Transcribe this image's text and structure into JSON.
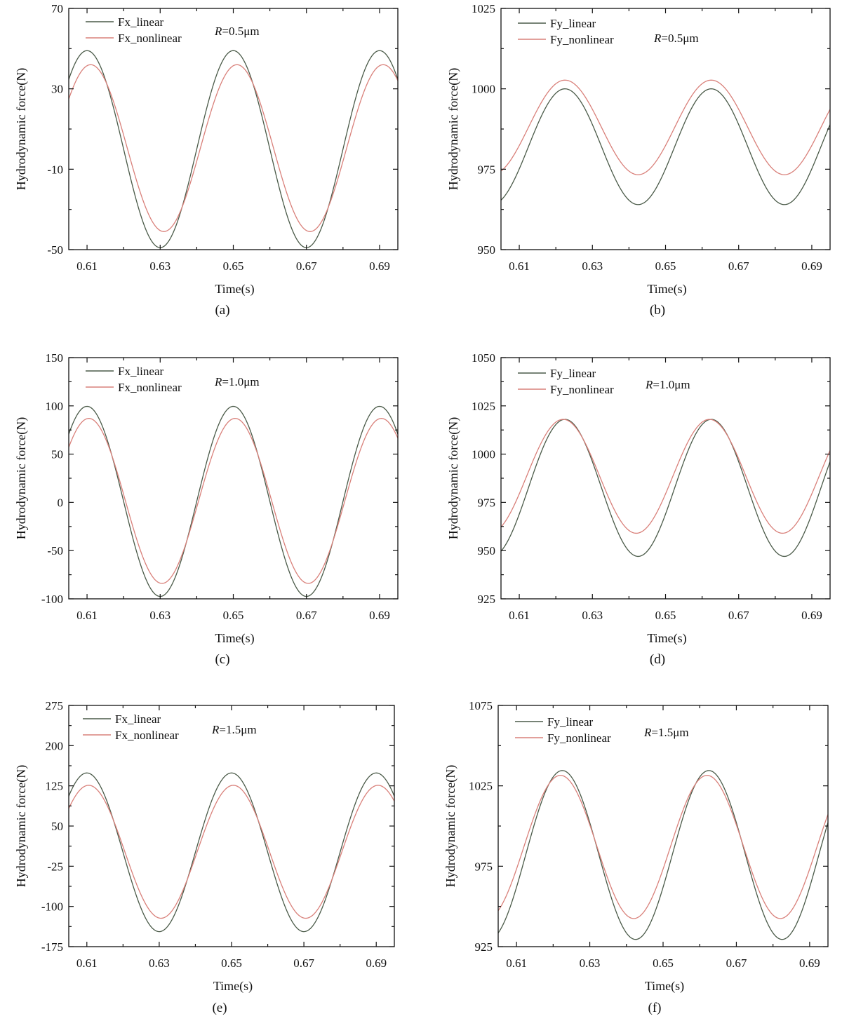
{
  "colors": {
    "linear": "#4a5a48",
    "nonlinear": "#d9807a",
    "axis": "#111111"
  },
  "chart_data": [
    {
      "panel": "(a)",
      "type": "line",
      "xlabel": "Time(s)",
      "ylabel": "Hydrodynamic force(N)",
      "annotation_var": "R",
      "annotation_text": "=0.5μm",
      "xlim": [
        0.605,
        0.695
      ],
      "ylim": [
        -50,
        70
      ],
      "xticks": [
        0.61,
        0.63,
        0.65,
        0.67,
        0.69
      ],
      "xtick_labels": [
        "0.61",
        "0.63",
        "0.65",
        "0.67",
        "0.69"
      ],
      "yticks": [
        -50,
        -10,
        30,
        70
      ],
      "ytick_labels": [
        "-50",
        "-10",
        "30",
        "70"
      ],
      "series": [
        {
          "name": "Fx_linear",
          "mean": 0,
          "amplitude": 49,
          "phase_peak_time": 0.61,
          "period": 0.04
        },
        {
          "name": "Fx_nonlinear",
          "mean": 0.5,
          "amplitude": 41.5,
          "phase_peak_time": 0.611,
          "period": 0.04
        }
      ]
    },
    {
      "panel": "(b)",
      "type": "line",
      "xlabel": "Time(s)",
      "ylabel": "Hydrodynamic force(N)",
      "annotation_var": "R",
      "annotation_text": "=0.5μm",
      "xlim": [
        0.605,
        0.695
      ],
      "ylim": [
        950,
        1025
      ],
      "xticks": [
        0.61,
        0.63,
        0.65,
        0.67,
        0.69
      ],
      "xtick_labels": [
        "0.61",
        "0.63",
        "0.65",
        "0.67",
        "0.69"
      ],
      "yticks": [
        950,
        975,
        1000,
        1025
      ],
      "ytick_labels": [
        "950",
        "975",
        "1000",
        "1025"
      ],
      "series": [
        {
          "name": "Fy_linear",
          "mean": 982,
          "amplitude": 18,
          "phase_peak_time": 0.6225,
          "period": 0.04
        },
        {
          "name": "Fy_nonlinear",
          "mean": 988,
          "amplitude": 14.7,
          "phase_peak_time": 0.6225,
          "period": 0.04
        }
      ]
    },
    {
      "panel": "(c)",
      "type": "line",
      "xlabel": "Time(s)",
      "ylabel": "Hydrodynamic force(N)",
      "annotation_var": "R",
      "annotation_text": "=1.0μm",
      "xlim": [
        0.605,
        0.695
      ],
      "ylim": [
        -100,
        150
      ],
      "xticks": [
        0.61,
        0.63,
        0.65,
        0.67,
        0.69
      ],
      "xtick_labels": [
        "0.61",
        "0.63",
        "0.65",
        "0.67",
        "0.69"
      ],
      "yticks": [
        -100,
        -50,
        0,
        50,
        100,
        150
      ],
      "ytick_labels": [
        "-100",
        "-50",
        "0",
        "50",
        "100",
        "150"
      ],
      "series": [
        {
          "name": "Fx_linear",
          "mean": 1,
          "amplitude": 98.5,
          "phase_peak_time": 0.61,
          "period": 0.04
        },
        {
          "name": "Fx_nonlinear",
          "mean": 1.5,
          "amplitude": 85.5,
          "phase_peak_time": 0.6105,
          "period": 0.04
        }
      ]
    },
    {
      "panel": "(d)",
      "type": "line",
      "xlabel": "Time(s)",
      "ylabel": "Hydrodynamic force(N)",
      "annotation_var": "R",
      "annotation_text": "=1.0μm",
      "xlim": [
        0.605,
        0.695
      ],
      "ylim": [
        925,
        1050
      ],
      "xticks": [
        0.61,
        0.63,
        0.65,
        0.67,
        0.69
      ],
      "xtick_labels": [
        "0.61",
        "0.63",
        "0.65",
        "0.67",
        "0.69"
      ],
      "yticks": [
        925,
        950,
        975,
        1000,
        1025,
        1050
      ],
      "ytick_labels": [
        "925",
        "950",
        "975",
        "1000",
        "1025",
        "1050"
      ],
      "series": [
        {
          "name": "Fy_linear",
          "mean": 982.5,
          "amplitude": 35.5,
          "phase_peak_time": 0.6225,
          "period": 0.04
        },
        {
          "name": "Fy_nonlinear",
          "mean": 988.5,
          "amplitude": 29.5,
          "phase_peak_time": 0.622,
          "period": 0.04
        }
      ]
    },
    {
      "panel": "(e)",
      "type": "line",
      "xlabel": "Time(s)",
      "ylabel": "Hydrodynamic force(N)",
      "annotation_var": "R",
      "annotation_text": "=1.5μm",
      "xlim": [
        0.605,
        0.695
      ],
      "ylim": [
        -175,
        275
      ],
      "xticks": [
        0.61,
        0.63,
        0.65,
        0.67,
        0.69
      ],
      "xtick_labels": [
        "0.61",
        "0.63",
        "0.65",
        "0.67",
        "0.69"
      ],
      "yticks": [
        -175,
        -100,
        -25,
        50,
        125,
        200,
        275
      ],
      "ytick_labels": [
        "-175",
        "-100",
        "-25",
        "50",
        "125",
        "200",
        "275"
      ],
      "series": [
        {
          "name": "Fx_linear",
          "mean": 1,
          "amplitude": 148,
          "phase_peak_time": 0.61,
          "period": 0.04
        },
        {
          "name": "Fx_nonlinear",
          "mean": 2,
          "amplitude": 124,
          "phase_peak_time": 0.6105,
          "period": 0.04
        }
      ]
    },
    {
      "panel": "(f)",
      "type": "line",
      "xlabel": "Time(s)",
      "ylabel": "Hydrodynamic force(N)",
      "annotation_var": "R",
      "annotation_text": "=1.5μm",
      "xlim": [
        0.605,
        0.695
      ],
      "ylim": [
        925,
        1075
      ],
      "xticks": [
        0.61,
        0.63,
        0.65,
        0.67,
        0.69
      ],
      "xtick_labels": [
        "0.61",
        "0.63",
        "0.65",
        "0.67",
        "0.69"
      ],
      "yticks": [
        925,
        975,
        1025,
        1075
      ],
      "ytick_labels": [
        "925",
        "975",
        "1025",
        "1075"
      ],
      "series": [
        {
          "name": "Fy_linear",
          "mean": 982,
          "amplitude": 52.5,
          "phase_peak_time": 0.6225,
          "period": 0.04
        },
        {
          "name": "Fy_nonlinear",
          "mean": 987,
          "amplitude": 44.5,
          "phase_peak_time": 0.622,
          "period": 0.04
        }
      ]
    }
  ]
}
